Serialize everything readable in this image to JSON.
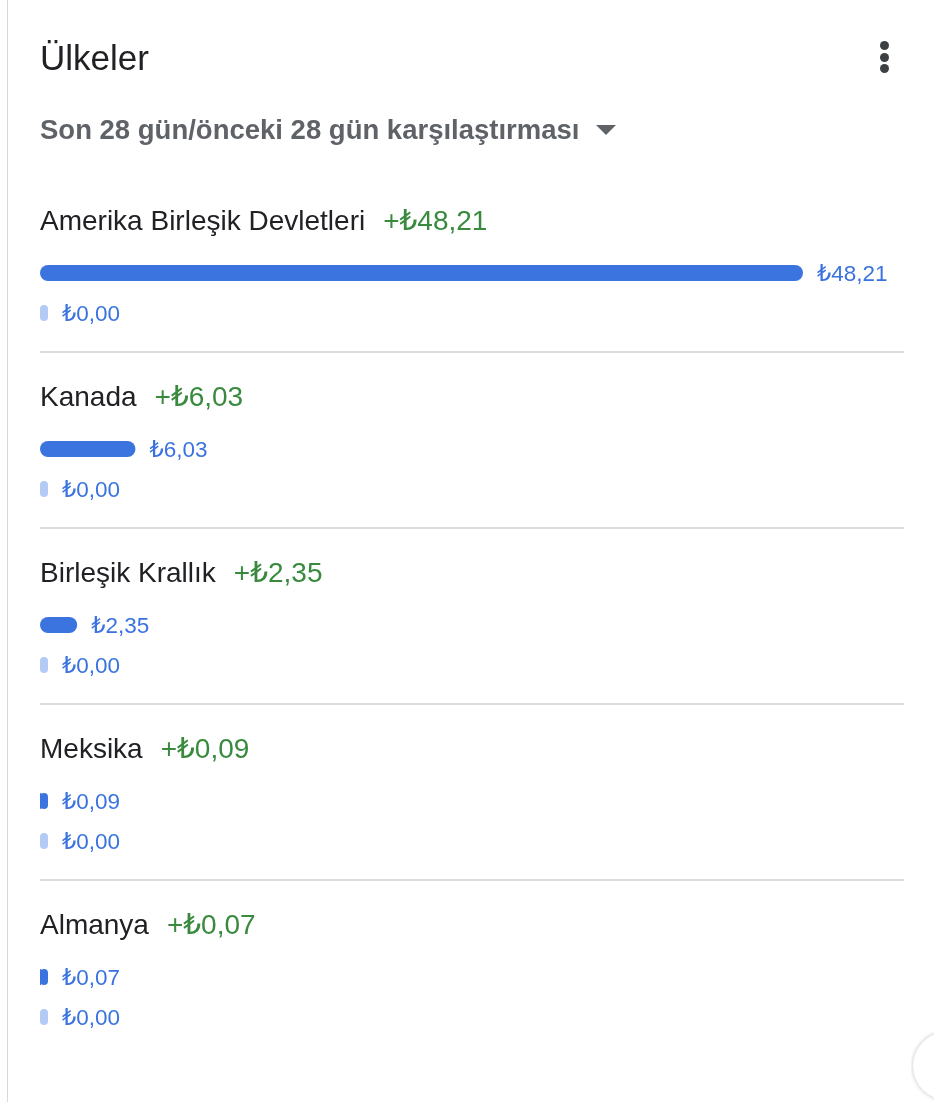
{
  "chart_data": {
    "type": "bar",
    "orientation": "horizontal",
    "title": "Ülkeler",
    "subtitle": "Son 28 gün/önceki 28 gün karşılaştırması",
    "categories": [
      "Amerika Birleşik Devletleri",
      "Kanada",
      "Birleşik Krallık",
      "Meksika",
      "Almanya"
    ],
    "series": [
      {
        "color": "#3b73df",
        "values": [
          48.21,
          6.03,
          2.35,
          0.09,
          0.07
        ],
        "value_labels": [
          "₺48,21",
          "₺6,03",
          "₺2,35",
          "₺0,09",
          "₺0,07"
        ]
      },
      {
        "color": "#b3c9f6",
        "values": [
          0,
          0,
          0,
          0,
          0
        ],
        "value_labels": [
          "₺0,00",
          "₺0,00",
          "₺0,00",
          "₺0,00",
          "₺0,00"
        ]
      }
    ],
    "annotations": [
      "+₺48,21",
      "+₺6,03",
      "+₺2,35",
      "+₺0,09",
      "+₺0,07"
    ],
    "tick_labels": "y"
  }
}
